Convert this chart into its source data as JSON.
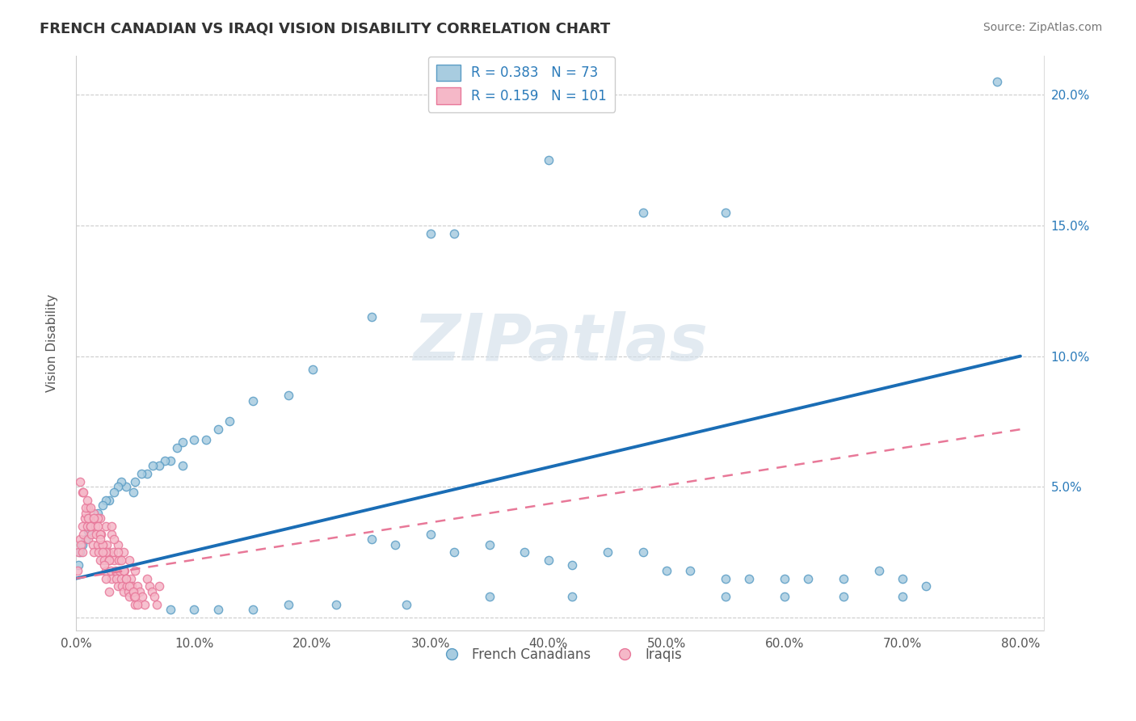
{
  "title": "FRENCH CANADIAN VS IRAQI VISION DISABILITY CORRELATION CHART",
  "source": "Source: ZipAtlas.com",
  "ylabel": "Vision Disability",
  "R_french": 0.383,
  "N_french": 73,
  "R_iraqi": 0.159,
  "N_iraqi": 101,
  "xlim": [
    0.0,
    0.82
  ],
  "ylim": [
    -0.005,
    0.215
  ],
  "xticks": [
    0.0,
    0.1,
    0.2,
    0.3,
    0.4,
    0.5,
    0.6,
    0.7,
    0.8
  ],
  "yticks": [
    0.0,
    0.05,
    0.1,
    0.15,
    0.2
  ],
  "ytick_labels_right": [
    "",
    "5.0%",
    "10.0%",
    "15.0%",
    "20.0%"
  ],
  "xtick_labels": [
    "0.0%",
    "10.0%",
    "20.0%",
    "30.0%",
    "40.0%",
    "50.0%",
    "60.0%",
    "70.0%",
    "80.0%"
  ],
  "french_color": "#a8cce0",
  "french_edge_color": "#5b9dc5",
  "iraqi_color": "#f5b8c8",
  "iraqi_edge_color": "#e8789a",
  "french_line_color": "#1a6db5",
  "iraqi_line_color": "#e87898",
  "background_color": "#ffffff",
  "watermark_text": "ZIPatlas",
  "grid_color": "#cccccc",
  "title_color": "#333333",
  "right_axis_color": "#2b7bba",
  "left_axis_label_color": "#555555",
  "french_scatter_x": [
    0.78,
    0.4,
    0.48,
    0.55,
    0.3,
    0.32,
    0.25,
    0.2,
    0.18,
    0.15,
    0.13,
    0.12,
    0.11,
    0.1,
    0.09,
    0.09,
    0.085,
    0.08,
    0.075,
    0.07,
    0.065,
    0.06,
    0.055,
    0.05,
    0.048,
    0.042,
    0.038,
    0.035,
    0.032,
    0.028,
    0.025,
    0.022,
    0.018,
    0.015,
    0.012,
    0.01,
    0.008,
    0.005,
    0.003,
    0.002,
    0.25,
    0.27,
    0.3,
    0.32,
    0.35,
    0.38,
    0.4,
    0.42,
    0.45,
    0.48,
    0.5,
    0.52,
    0.55,
    0.57,
    0.6,
    0.62,
    0.65,
    0.68,
    0.7,
    0.72,
    0.55,
    0.6,
    0.65,
    0.7,
    0.42,
    0.35,
    0.28,
    0.22,
    0.18,
    0.15,
    0.12,
    0.1,
    0.08
  ],
  "french_scatter_y": [
    0.205,
    0.175,
    0.155,
    0.155,
    0.147,
    0.147,
    0.115,
    0.095,
    0.085,
    0.083,
    0.075,
    0.072,
    0.068,
    0.068,
    0.067,
    0.058,
    0.065,
    0.06,
    0.06,
    0.058,
    0.058,
    0.055,
    0.055,
    0.052,
    0.048,
    0.05,
    0.052,
    0.05,
    0.048,
    0.045,
    0.045,
    0.043,
    0.04,
    0.038,
    0.035,
    0.033,
    0.03,
    0.028,
    0.025,
    0.02,
    0.03,
    0.028,
    0.032,
    0.025,
    0.028,
    0.025,
    0.022,
    0.02,
    0.025,
    0.025,
    0.018,
    0.018,
    0.015,
    0.015,
    0.015,
    0.015,
    0.015,
    0.018,
    0.015,
    0.012,
    0.008,
    0.008,
    0.008,
    0.008,
    0.008,
    0.008,
    0.005,
    0.005,
    0.005,
    0.003,
    0.003,
    0.003,
    0.003
  ],
  "iraqi_scatter_x": [
    0.001,
    0.002,
    0.003,
    0.004,
    0.005,
    0.005,
    0.006,
    0.007,
    0.008,
    0.009,
    0.01,
    0.01,
    0.011,
    0.012,
    0.013,
    0.014,
    0.015,
    0.015,
    0.016,
    0.017,
    0.018,
    0.019,
    0.02,
    0.02,
    0.021,
    0.022,
    0.023,
    0.024,
    0.025,
    0.025,
    0.026,
    0.027,
    0.028,
    0.029,
    0.03,
    0.03,
    0.031,
    0.032,
    0.033,
    0.034,
    0.035,
    0.035,
    0.036,
    0.037,
    0.038,
    0.039,
    0.04,
    0.04,
    0.041,
    0.042,
    0.043,
    0.044,
    0.045,
    0.045,
    0.046,
    0.047,
    0.048,
    0.049,
    0.05,
    0.05,
    0.052,
    0.054,
    0.056,
    0.058,
    0.06,
    0.062,
    0.064,
    0.066,
    0.068,
    0.07,
    0.005,
    0.008,
    0.01,
    0.012,
    0.015,
    0.018,
    0.02,
    0.022,
    0.025,
    0.028,
    0.03,
    0.032,
    0.035,
    0.038,
    0.04,
    0.042,
    0.045,
    0.048,
    0.05,
    0.052,
    0.003,
    0.006,
    0.009,
    0.012,
    0.015,
    0.018,
    0.02,
    0.022,
    0.024,
    0.025,
    0.028
  ],
  "iraqi_scatter_y": [
    0.018,
    0.025,
    0.03,
    0.028,
    0.035,
    0.025,
    0.032,
    0.038,
    0.04,
    0.035,
    0.042,
    0.03,
    0.038,
    0.035,
    0.032,
    0.028,
    0.038,
    0.025,
    0.035,
    0.032,
    0.028,
    0.025,
    0.038,
    0.022,
    0.032,
    0.028,
    0.025,
    0.022,
    0.035,
    0.018,
    0.028,
    0.025,
    0.022,
    0.018,
    0.032,
    0.015,
    0.025,
    0.022,
    0.018,
    0.015,
    0.028,
    0.012,
    0.022,
    0.018,
    0.015,
    0.012,
    0.025,
    0.01,
    0.018,
    0.015,
    0.012,
    0.01,
    0.022,
    0.008,
    0.015,
    0.012,
    0.01,
    0.008,
    0.018,
    0.005,
    0.012,
    0.01,
    0.008,
    0.005,
    0.015,
    0.012,
    0.01,
    0.008,
    0.005,
    0.012,
    0.048,
    0.042,
    0.038,
    0.035,
    0.04,
    0.038,
    0.032,
    0.028,
    0.025,
    0.022,
    0.035,
    0.03,
    0.025,
    0.022,
    0.018,
    0.015,
    0.012,
    0.01,
    0.008,
    0.005,
    0.052,
    0.048,
    0.045,
    0.042,
    0.038,
    0.035,
    0.03,
    0.025,
    0.02,
    0.015,
    0.01
  ],
  "fr_line_x0": 0.0,
  "fr_line_y0": 0.015,
  "fr_line_x1": 0.8,
  "fr_line_y1": 0.1,
  "ir_line_x0": 0.0,
  "ir_line_y0": 0.015,
  "ir_line_x1": 0.8,
  "ir_line_y1": 0.072
}
